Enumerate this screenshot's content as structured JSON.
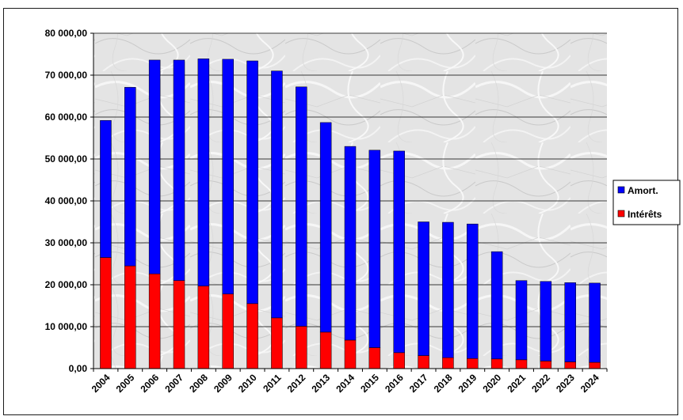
{
  "chart_data": {
    "type": "bar",
    "stacked": true,
    "categories": [
      "2004",
      "2005",
      "2006",
      "2007",
      "2008",
      "2009",
      "2010",
      "2011",
      "2012",
      "2013",
      "2014",
      "2015",
      "2016",
      "2017",
      "2018",
      "2019",
      "2020",
      "2021",
      "2022",
      "2023",
      "2024"
    ],
    "series": [
      {
        "name": "Amort.",
        "color": "#0000ff",
        "values": [
          32700,
          42600,
          51000,
          52600,
          54200,
          56000,
          57900,
          58900,
          57100,
          50000,
          46200,
          47100,
          48100,
          31900,
          32300,
          32100,
          25600,
          18900,
          19000,
          18900,
          18900
        ]
      },
      {
        "name": "Intérêts",
        "color": "#ff0000",
        "values": [
          26500,
          24500,
          22600,
          21000,
          19700,
          17800,
          15500,
          12100,
          10100,
          8700,
          6800,
          5000,
          3800,
          3100,
          2600,
          2400,
          2300,
          2100,
          1800,
          1600,
          1500
        ]
      }
    ],
    "ylim": [
      0,
      80000
    ],
    "yticks": [
      0,
      10000,
      20000,
      30000,
      40000,
      50000,
      60000,
      70000,
      80000
    ],
    "ytick_labels": [
      "0,00",
      "10 000,00",
      "20 000,00",
      "30 000,00",
      "40 000,00",
      "50 000,00",
      "60 000,00",
      "70 000,00",
      "80 000,00"
    ],
    "grid": true,
    "legend_position": "right",
    "title": "",
    "xlabel": "",
    "ylabel": ""
  }
}
